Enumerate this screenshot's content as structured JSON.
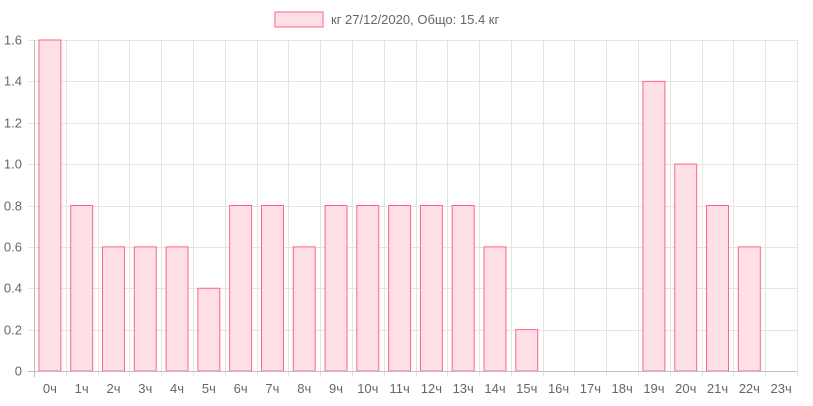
{
  "chart_data": {
    "type": "bar",
    "legend": "кг 27/12/2020, Общо: 15.4 кг",
    "categories": [
      "0ч",
      "1ч",
      "2ч",
      "3ч",
      "4ч",
      "5ч",
      "6ч",
      "7ч",
      "8ч",
      "9ч",
      "10ч",
      "11ч",
      "12ч",
      "13ч",
      "14ч",
      "15ч",
      "16ч",
      "17ч",
      "18ч",
      "19ч",
      "20ч",
      "21ч",
      "22ч",
      "23ч"
    ],
    "values": [
      1.6,
      0.8,
      0.6,
      0.6,
      0.6,
      0.4,
      0.8,
      0.8,
      0.6,
      0.8,
      0.8,
      0.8,
      0.8,
      0.8,
      0.6,
      0.2,
      0,
      0,
      0,
      1.4,
      1.0,
      0.8,
      0.6,
      0
    ],
    "y_ticks": [
      "0",
      "0.2",
      "0.4",
      "0.6",
      "0.8",
      "1.0",
      "1.2",
      "1.4",
      "1.6"
    ],
    "ylim": [
      0,
      1.6
    ],
    "grid": true,
    "legend_position": "top-center",
    "colors": {
      "bar_fill": "#ffe0e6",
      "bar_stroke": "#ff6384",
      "grid": "#e4e4e4",
      "axis": "#bfbfbf",
      "text": "#666666"
    }
  }
}
